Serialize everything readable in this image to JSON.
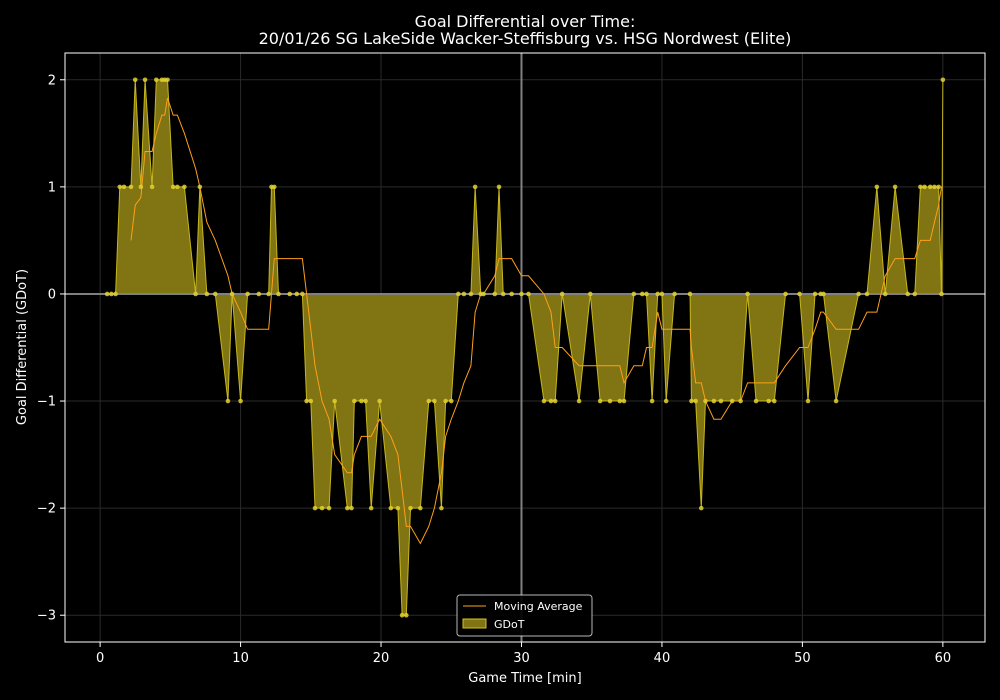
{
  "chart_data": {
    "type": "area",
    "title_line1": "Goal Differential over Time:",
    "title_line2": "20/01/26 SG LakeSide Wacker-Steffisburg  vs.  HSG Nordwest (Elite)",
    "xlabel": "Game Time [min]",
    "ylabel": "Goal Differential (GDoT)",
    "xlim": [
      -2.5,
      63
    ],
    "ylim": [
      -3.25,
      2.25
    ],
    "xticks": [
      0,
      10,
      20,
      30,
      40,
      50,
      60
    ],
    "yticks": [
      -3,
      -2,
      -1,
      0,
      1,
      2
    ],
    "ytick_labels": [
      "−3",
      "−2",
      "−1",
      "0",
      "1",
      "2"
    ],
    "halftime_x": 30,
    "grid": true,
    "legend_position": "bottom-center",
    "series": [
      {
        "name": "GDoT",
        "color": "#d4c320",
        "fill": "#807413",
        "points": [
          [
            0.5,
            0
          ],
          [
            0.8,
            0
          ],
          [
            1.1,
            0
          ],
          [
            1.4,
            1
          ],
          [
            1.7,
            1
          ],
          [
            2.2,
            1
          ],
          [
            2.5,
            2
          ],
          [
            2.9,
            1
          ],
          [
            3.2,
            2
          ],
          [
            3.7,
            1
          ],
          [
            4.0,
            2
          ],
          [
            4.4,
            2
          ],
          [
            4.6,
            2
          ],
          [
            4.8,
            2
          ],
          [
            5.2,
            1
          ],
          [
            5.5,
            1
          ],
          [
            6.0,
            1
          ],
          [
            6.8,
            0
          ],
          [
            7.1,
            1
          ],
          [
            7.6,
            0
          ],
          [
            8.2,
            0
          ],
          [
            9.1,
            -1
          ],
          [
            9.4,
            0
          ],
          [
            10.0,
            -1
          ],
          [
            10.5,
            0
          ],
          [
            11.3,
            0
          ],
          [
            12.0,
            0
          ],
          [
            12.2,
            1
          ],
          [
            12.4,
            1
          ],
          [
            12.7,
            0
          ],
          [
            13.5,
            0
          ],
          [
            14.0,
            0
          ],
          [
            14.4,
            0
          ],
          [
            14.7,
            -1
          ],
          [
            15.0,
            -1
          ],
          [
            15.3,
            -2
          ],
          [
            15.8,
            -2
          ],
          [
            16.3,
            -2
          ],
          [
            16.7,
            -1
          ],
          [
            17.6,
            -2
          ],
          [
            17.9,
            -2
          ],
          [
            18.1,
            -1
          ],
          [
            18.6,
            -1
          ],
          [
            18.9,
            -1
          ],
          [
            19.3,
            -2
          ],
          [
            19.9,
            -1
          ],
          [
            20.7,
            -2
          ],
          [
            21.2,
            -2
          ],
          [
            21.5,
            -3
          ],
          [
            21.8,
            -3
          ],
          [
            22.1,
            -2
          ],
          [
            22.8,
            -2
          ],
          [
            23.4,
            -1
          ],
          [
            23.8,
            -1
          ],
          [
            24.3,
            -2
          ],
          [
            24.6,
            -1
          ],
          [
            25.0,
            -1
          ],
          [
            25.5,
            0
          ],
          [
            25.9,
            0
          ],
          [
            26.4,
            0
          ],
          [
            26.7,
            1
          ],
          [
            27.1,
            0
          ],
          [
            27.3,
            0
          ],
          [
            28.1,
            0
          ],
          [
            28.4,
            1
          ],
          [
            28.7,
            0
          ],
          [
            29.3,
            0
          ],
          [
            30.0,
            0
          ],
          [
            30.5,
            0
          ],
          [
            31.6,
            -1
          ],
          [
            32.1,
            -1
          ],
          [
            32.4,
            -1
          ],
          [
            32.9,
            0
          ],
          [
            34.1,
            -1
          ],
          [
            34.9,
            0
          ],
          [
            35.6,
            -1
          ],
          [
            36.3,
            -1
          ],
          [
            37.0,
            -1
          ],
          [
            37.3,
            -1
          ],
          [
            38.0,
            0
          ],
          [
            38.6,
            0
          ],
          [
            38.9,
            0
          ],
          [
            39.3,
            -1
          ],
          [
            39.7,
            0
          ],
          [
            40.0,
            0
          ],
          [
            40.3,
            -1
          ],
          [
            40.9,
            0
          ],
          [
            42.0,
            0
          ],
          [
            42.1,
            -1
          ],
          [
            42.4,
            -1
          ],
          [
            42.8,
            -2
          ],
          [
            43.1,
            -1
          ],
          [
            43.7,
            -1
          ],
          [
            44.2,
            -1
          ],
          [
            45.0,
            -1
          ],
          [
            45.6,
            -1
          ],
          [
            46.1,
            0
          ],
          [
            46.7,
            -1
          ],
          [
            47.6,
            -1
          ],
          [
            48.0,
            -1
          ],
          [
            48.8,
            0
          ],
          [
            49.8,
            0
          ],
          [
            50.4,
            -1
          ],
          [
            50.9,
            0
          ],
          [
            51.3,
            0
          ],
          [
            51.5,
            0
          ],
          [
            52.4,
            -1
          ],
          [
            54.0,
            0
          ],
          [
            54.6,
            0
          ],
          [
            55.3,
            1
          ],
          [
            55.9,
            0
          ],
          [
            56.6,
            1
          ],
          [
            57.5,
            0
          ],
          [
            58.0,
            0
          ],
          [
            58.4,
            1
          ],
          [
            58.7,
            1
          ],
          [
            59.1,
            1
          ],
          [
            59.4,
            1
          ],
          [
            59.7,
            1
          ],
          [
            59.9,
            0
          ],
          [
            60.0,
            2
          ]
        ]
      },
      {
        "name": "Moving Average",
        "color": "#ff9f1a",
        "points": [
          [
            2.2,
            0.5
          ],
          [
            2.5,
            0.83
          ],
          [
            2.9,
            0.9
          ],
          [
            3.2,
            1.33
          ],
          [
            3.7,
            1.33
          ],
          [
            4.0,
            1.5
          ],
          [
            4.4,
            1.67
          ],
          [
            4.6,
            1.67
          ],
          [
            4.8,
            1.83
          ],
          [
            5.2,
            1.67
          ],
          [
            5.5,
            1.67
          ],
          [
            6.0,
            1.5
          ],
          [
            6.8,
            1.17
          ],
          [
            7.1,
            1.0
          ],
          [
            7.6,
            0.67
          ],
          [
            8.2,
            0.5
          ],
          [
            9.1,
            0.17
          ],
          [
            9.4,
            0.0
          ],
          [
            10.0,
            -0.17
          ],
          [
            10.5,
            -0.33
          ],
          [
            11.3,
            -0.33
          ],
          [
            12.0,
            -0.33
          ],
          [
            12.2,
            0.0
          ],
          [
            12.4,
            0.33
          ],
          [
            12.7,
            0.33
          ],
          [
            13.5,
            0.33
          ],
          [
            14.0,
            0.33
          ],
          [
            14.4,
            0.33
          ],
          [
            14.7,
            0.0
          ],
          [
            15.0,
            -0.33
          ],
          [
            15.3,
            -0.67
          ],
          [
            15.8,
            -1.0
          ],
          [
            16.3,
            -1.17
          ],
          [
            16.7,
            -1.5
          ],
          [
            17.6,
            -1.67
          ],
          [
            17.9,
            -1.67
          ],
          [
            18.1,
            -1.5
          ],
          [
            18.6,
            -1.33
          ],
          [
            18.9,
            -1.33
          ],
          [
            19.3,
            -1.33
          ],
          [
            19.9,
            -1.17
          ],
          [
            20.7,
            -1.33
          ],
          [
            21.2,
            -1.5
          ],
          [
            21.5,
            -1.83
          ],
          [
            21.8,
            -2.17
          ],
          [
            22.1,
            -2.17
          ],
          [
            22.8,
            -2.33
          ],
          [
            23.4,
            -2.17
          ],
          [
            23.8,
            -2.0
          ],
          [
            24.3,
            -1.67
          ],
          [
            24.6,
            -1.33
          ],
          [
            25.0,
            -1.17
          ],
          [
            25.5,
            -1.0
          ],
          [
            25.9,
            -0.83
          ],
          [
            26.4,
            -0.67
          ],
          [
            26.7,
            -0.17
          ],
          [
            27.1,
            0.0
          ],
          [
            27.3,
            0.0
          ],
          [
            28.1,
            0.17
          ],
          [
            28.4,
            0.33
          ],
          [
            28.7,
            0.33
          ],
          [
            29.3,
            0.33
          ],
          [
            30.0,
            0.17
          ],
          [
            30.5,
            0.17
          ],
          [
            31.6,
            0.0
          ],
          [
            32.1,
            -0.17
          ],
          [
            32.4,
            -0.5
          ],
          [
            32.9,
            -0.5
          ],
          [
            34.1,
            -0.67
          ],
          [
            34.9,
            -0.67
          ],
          [
            35.6,
            -0.67
          ],
          [
            36.3,
            -0.67
          ],
          [
            37.0,
            -0.67
          ],
          [
            37.3,
            -0.83
          ],
          [
            38.0,
            -0.67
          ],
          [
            38.6,
            -0.67
          ],
          [
            38.9,
            -0.5
          ],
          [
            39.3,
            -0.5
          ],
          [
            39.7,
            -0.17
          ],
          [
            40.0,
            -0.33
          ],
          [
            40.3,
            -0.33
          ],
          [
            40.9,
            -0.33
          ],
          [
            42.0,
            -0.33
          ],
          [
            42.1,
            -0.5
          ],
          [
            42.4,
            -0.83
          ],
          [
            42.8,
            -0.83
          ],
          [
            43.1,
            -1.0
          ],
          [
            43.7,
            -1.17
          ],
          [
            44.2,
            -1.17
          ],
          [
            45.0,
            -1.0
          ],
          [
            45.6,
            -1.0
          ],
          [
            46.1,
            -0.83
          ],
          [
            46.7,
            -0.83
          ],
          [
            47.6,
            -0.83
          ],
          [
            48.0,
            -0.83
          ],
          [
            48.8,
            -0.67
          ],
          [
            49.8,
            -0.5
          ],
          [
            50.4,
            -0.5
          ],
          [
            50.9,
            -0.33
          ],
          [
            51.3,
            -0.17
          ],
          [
            51.5,
            -0.17
          ],
          [
            52.4,
            -0.33
          ],
          [
            54.0,
            -0.33
          ],
          [
            54.6,
            -0.17
          ],
          [
            55.3,
            -0.17
          ],
          [
            55.9,
            0.17
          ],
          [
            56.6,
            0.33
          ],
          [
            57.5,
            0.33
          ],
          [
            58.0,
            0.33
          ],
          [
            58.4,
            0.5
          ],
          [
            58.7,
            0.5
          ],
          [
            59.1,
            0.5
          ],
          [
            59.4,
            0.67
          ],
          [
            59.7,
            0.83
          ],
          [
            59.9,
            1.0
          ],
          [
            60.0,
            1.0
          ]
        ]
      }
    ]
  }
}
